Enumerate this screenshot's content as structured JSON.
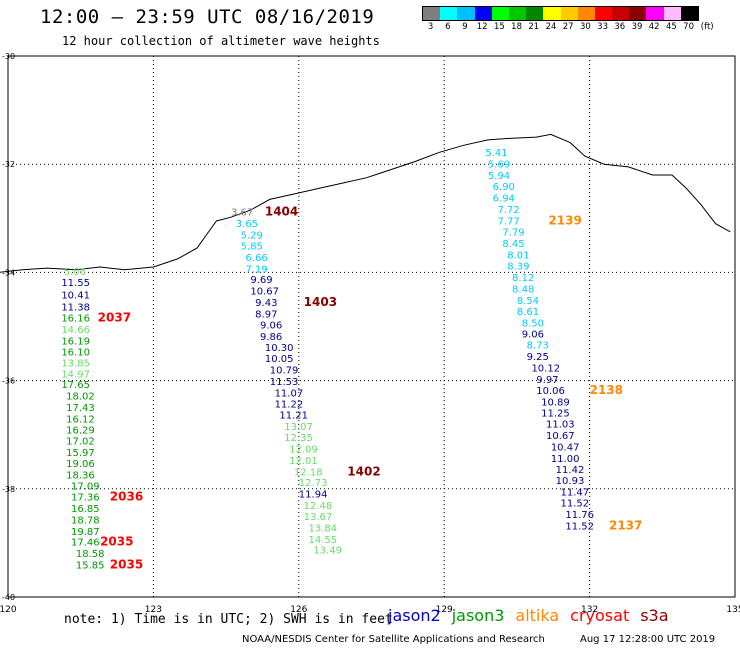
{
  "header": {
    "title": "12:00 – 23:59 UTC 08/16/2019",
    "subtitle": "12 hour collection of altimeter wave heights"
  },
  "colorbar": {
    "unit": "(ft)",
    "labels": [
      "3",
      "6",
      "9",
      "12",
      "15",
      "18",
      "21",
      "24",
      "27",
      "30",
      "33",
      "36",
      "39",
      "42",
      "45",
      "70"
    ],
    "colors": [
      "#7f7f7f",
      "#00ffff",
      "#00bfff",
      "#0000ff",
      "#00ff00",
      "#00c800",
      "#008800",
      "#ffff00",
      "#ffcc00",
      "#ff8800",
      "#ff0000",
      "#c80000",
      "#880000",
      "#ff00ff",
      "#ffbbff",
      "#000000"
    ]
  },
  "map": {
    "lat_labels": [
      "-30",
      "-32",
      "-34",
      "-36",
      "-38",
      "-40"
    ],
    "lon_labels": [
      "120",
      "123",
      "126",
      "129",
      "132",
      "135"
    ]
  },
  "chart_data": {
    "type": "scatter",
    "title": "12:00 – 23:59 UTC 08/16/2019",
    "xlim": [
      120,
      135
    ],
    "ylim": [
      -40,
      -30
    ],
    "track_groups": [
      {
        "name": "track-121",
        "labels": [
          {
            "text": "5.06",
            "lat": -34.05,
            "lon": 121.15,
            "color": "#7fd97f"
          },
          {
            "text": "11.55",
            "lat": -34.25,
            "lon": 121.1,
            "color": "#00008b"
          },
          {
            "text": "10.41",
            "lat": -34.48,
            "lon": 121.1,
            "color": "#00008b"
          },
          {
            "text": "11.38",
            "lat": -34.7,
            "lon": 121.1,
            "color": "#00008b"
          },
          {
            "text": "16.16",
            "lat": -34.91,
            "lon": 121.1,
            "color": "#009900"
          },
          {
            "text": "14.66",
            "lat": -35.12,
            "lon": 121.1,
            "color": "#66dd66"
          },
          {
            "text": "16.19",
            "lat": -35.33,
            "lon": 121.1,
            "color": "#009900"
          },
          {
            "text": "16.10",
            "lat": -35.54,
            "lon": 121.1,
            "color": "#009900"
          },
          {
            "text": "13.85",
            "lat": -35.74,
            "lon": 121.1,
            "color": "#66dd66"
          },
          {
            "text": "14.97",
            "lat": -35.94,
            "lon": 121.1,
            "color": "#66dd66"
          },
          {
            "text": "17.65",
            "lat": -36.14,
            "lon": 121.1,
            "color": "#009900"
          },
          {
            "text": "18.02",
            "lat": -36.35,
            "lon": 121.2,
            "color": "#009900"
          },
          {
            "text": "17.43",
            "lat": -36.56,
            "lon": 121.2,
            "color": "#009900"
          },
          {
            "text": "16.12",
            "lat": -36.77,
            "lon": 121.2,
            "color": "#009900"
          },
          {
            "text": "16.29",
            "lat": -36.98,
            "lon": 121.2,
            "color": "#009900"
          },
          {
            "text": "17.02",
            "lat": -37.18,
            "lon": 121.2,
            "color": "#009900"
          },
          {
            "text": "15.97",
            "lat": -37.39,
            "lon": 121.2,
            "color": "#009900"
          },
          {
            "text": "19.06",
            "lat": -37.6,
            "lon": 121.2,
            "color": "#009900"
          },
          {
            "text": "18.36",
            "lat": -37.81,
            "lon": 121.2,
            "color": "#009900"
          },
          {
            "text": "17.09",
            "lat": -38.01,
            "lon": 121.3,
            "color": "#009900"
          },
          {
            "text": "17.36",
            "lat": -38.22,
            "lon": 121.3,
            "color": "#009900"
          },
          {
            "text": "16.85",
            "lat": -38.43,
            "lon": 121.3,
            "color": "#009900"
          },
          {
            "text": "18.78",
            "lat": -38.64,
            "lon": 121.3,
            "color": "#009900"
          },
          {
            "text": "19.87",
            "lat": -38.85,
            "lon": 121.3,
            "color": "#009900"
          },
          {
            "text": "17.46",
            "lat": -39.05,
            "lon": 121.3,
            "color": "#009900"
          },
          {
            "text": "18.58",
            "lat": -39.26,
            "lon": 121.4,
            "color": "#009900"
          },
          {
            "text": "15.85",
            "lat": -39.47,
            "lon": 121.4,
            "color": "#009900"
          }
        ]
      },
      {
        "name": "track-125",
        "labels": [
          {
            "text": "3.67",
            "lat": -32.95,
            "lon": 124.6,
            "color": "#7f7f7f"
          },
          {
            "text": "3.65",
            "lat": -33.16,
            "lon": 124.7,
            "color": "#00ccff"
          },
          {
            "text": "5.29",
            "lat": -33.37,
            "lon": 124.8,
            "color": "#00ccff"
          },
          {
            "text": "5.85",
            "lat": -33.58,
            "lon": 124.8,
            "color": "#00ccff"
          },
          {
            "text": "6.66",
            "lat": -33.79,
            "lon": 124.9,
            "color": "#00ccff"
          },
          {
            "text": "7.19",
            "lat": -34.0,
            "lon": 124.9,
            "color": "#00ccff"
          },
          {
            "text": "9.69",
            "lat": -34.2,
            "lon": 125.0,
            "color": "#00008b"
          },
          {
            "text": "10.67",
            "lat": -34.41,
            "lon": 125.0,
            "color": "#00008b"
          },
          {
            "text": "9.43",
            "lat": -34.62,
            "lon": 125.1,
            "color": "#00008b"
          },
          {
            "text": "8.97",
            "lat": -34.83,
            "lon": 125.1,
            "color": "#00008b"
          },
          {
            "text": "9.06",
            "lat": -35.04,
            "lon": 125.2,
            "color": "#00008b"
          },
          {
            "text": "9.86",
            "lat": -35.25,
            "lon": 125.2,
            "color": "#00008b"
          },
          {
            "text": "10.30",
            "lat": -35.45,
            "lon": 125.3,
            "color": "#00008b"
          },
          {
            "text": "10.05",
            "lat": -35.66,
            "lon": 125.3,
            "color": "#00008b"
          },
          {
            "text": "10.79",
            "lat": -35.87,
            "lon": 125.4,
            "color": "#00008b"
          },
          {
            "text": "11.53",
            "lat": -36.08,
            "lon": 125.4,
            "color": "#00008b"
          },
          {
            "text": "11.07",
            "lat": -36.29,
            "lon": 125.5,
            "color": "#00008b"
          },
          {
            "text": "11.22",
            "lat": -36.5,
            "lon": 125.5,
            "color": "#00008b"
          },
          {
            "text": "11.21",
            "lat": -36.7,
            "lon": 125.6,
            "color": "#00008b"
          },
          {
            "text": "13.07",
            "lat": -36.91,
            "lon": 125.7,
            "color": "#66dd66"
          },
          {
            "text": "12.35",
            "lat": -37.12,
            "lon": 125.7,
            "color": "#66dd66"
          },
          {
            "text": "12.09",
            "lat": -37.33,
            "lon": 125.8,
            "color": "#66dd66"
          },
          {
            "text": "12.01",
            "lat": -37.54,
            "lon": 125.8,
            "color": "#66dd66"
          },
          {
            "text": "12.18",
            "lat": -37.75,
            "lon": 125.9,
            "color": "#66dd66"
          },
          {
            "text": "12.73",
            "lat": -37.95,
            "lon": 126.0,
            "color": "#66dd66"
          },
          {
            "text": "11.94",
            "lat": -38.16,
            "lon": 126.0,
            "color": "#00008b"
          },
          {
            "text": "12.48",
            "lat": -38.37,
            "lon": 126.1,
            "color": "#66dd66"
          },
          {
            "text": "13.67",
            "lat": -38.58,
            "lon": 126.1,
            "color": "#66dd66"
          },
          {
            "text": "13.84",
            "lat": -38.79,
            "lon": 126.2,
            "color": "#66dd66"
          },
          {
            "text": "14.55",
            "lat": -39.0,
            "lon": 126.2,
            "color": "#66dd66"
          },
          {
            "text": "13.49",
            "lat": -39.2,
            "lon": 126.3,
            "color": "#66dd66"
          }
        ]
      },
      {
        "name": "track-130",
        "labels": [
          {
            "text": "5.41",
            "lat": -31.85,
            "lon": 129.85,
            "color": "#00ccff"
          },
          {
            "text": "5.69",
            "lat": -32.06,
            "lon": 129.9,
            "color": "#00ccff"
          },
          {
            "text": "5.94",
            "lat": -32.27,
            "lon": 129.9,
            "color": "#00ccff"
          },
          {
            "text": "6.90",
            "lat": -32.48,
            "lon": 130.0,
            "color": "#00ccff"
          },
          {
            "text": "6.94",
            "lat": -32.69,
            "lon": 130.0,
            "color": "#00ccff"
          },
          {
            "text": "7.72",
            "lat": -32.9,
            "lon": 130.1,
            "color": "#00ccff"
          },
          {
            "text": "7.77",
            "lat": -33.11,
            "lon": 130.1,
            "color": "#00ccff"
          },
          {
            "text": "7.79",
            "lat": -33.32,
            "lon": 130.2,
            "color": "#00ccff"
          },
          {
            "text": "8.45",
            "lat": -33.53,
            "lon": 130.2,
            "color": "#00ccff"
          },
          {
            "text": "8.01",
            "lat": -33.74,
            "lon": 130.3,
            "color": "#00ccff"
          },
          {
            "text": "8.39",
            "lat": -33.95,
            "lon": 130.3,
            "color": "#00ccff"
          },
          {
            "text": "8.12",
            "lat": -34.16,
            "lon": 130.4,
            "color": "#00ccff"
          },
          {
            "text": "8.48",
            "lat": -34.37,
            "lon": 130.4,
            "color": "#00ccff"
          },
          {
            "text": "8.54",
            "lat": -34.58,
            "lon": 130.5,
            "color": "#00ccff"
          },
          {
            "text": "8.61",
            "lat": -34.79,
            "lon": 130.5,
            "color": "#00ccff"
          },
          {
            "text": "8.50",
            "lat": -35.0,
            "lon": 130.6,
            "color": "#00ccff"
          },
          {
            "text": "9.06",
            "lat": -35.2,
            "lon": 130.6,
            "color": "#00008b"
          },
          {
            "text": "8.73",
            "lat": -35.41,
            "lon": 130.7,
            "color": "#00ccff"
          },
          {
            "text": "9.25",
            "lat": -35.62,
            "lon": 130.7,
            "color": "#00008b"
          },
          {
            "text": "10.12",
            "lat": -35.83,
            "lon": 130.8,
            "color": "#00008b"
          },
          {
            "text": "9.97",
            "lat": -36.04,
            "lon": 130.9,
            "color": "#00008b"
          },
          {
            "text": "10.06",
            "lat": -36.25,
            "lon": 130.9,
            "color": "#00008b"
          },
          {
            "text": "10.89",
            "lat": -36.46,
            "lon": 131.0,
            "color": "#00008b"
          },
          {
            "text": "11.25",
            "lat": -36.66,
            "lon": 131.0,
            "color": "#00008b"
          },
          {
            "text": "11.03",
            "lat": -36.87,
            "lon": 131.1,
            "color": "#00008b"
          },
          {
            "text": "10.67",
            "lat": -37.08,
            "lon": 131.1,
            "color": "#00008b"
          },
          {
            "text": "10.47",
            "lat": -37.29,
            "lon": 131.2,
            "color": "#00008b"
          },
          {
            "text": "11.00",
            "lat": -37.5,
            "lon": 131.2,
            "color": "#00008b"
          },
          {
            "text": "11.42",
            "lat": -37.71,
            "lon": 131.3,
            "color": "#00008b"
          },
          {
            "text": "10.93",
            "lat": -37.91,
            "lon": 131.3,
            "color": "#00008b"
          },
          {
            "text": "11.47",
            "lat": -38.12,
            "lon": 131.4,
            "color": "#00008b"
          },
          {
            "text": "11.52",
            "lat": -38.33,
            "lon": 131.4,
            "color": "#00008b"
          },
          {
            "text": "11.76",
            "lat": -38.54,
            "lon": 131.5,
            "color": "#00008b"
          },
          {
            "text": "11.52",
            "lat": -38.75,
            "lon": 131.5,
            "color": "#00008b"
          }
        ]
      }
    ],
    "pass_times": [
      {
        "text": "1404",
        "lat": -32.95,
        "lon": 125.3,
        "color": "#880000"
      },
      {
        "text": "1403",
        "lat": -34.62,
        "lon": 126.1,
        "color": "#880000"
      },
      {
        "text": "1402",
        "lat": -37.75,
        "lon": 127.0,
        "color": "#880000"
      },
      {
        "text": "2037",
        "lat": -34.91,
        "lon": 121.85,
        "color": "#ff0000"
      },
      {
        "text": "2036",
        "lat": -38.22,
        "lon": 122.1,
        "color": "#ff0000"
      },
      {
        "text": "2035",
        "lat": -39.05,
        "lon": 121.9,
        "color": "#ff0000"
      },
      {
        "text": "2035",
        "lat": -39.47,
        "lon": 122.1,
        "color": "#ff0000"
      },
      {
        "text": "2139",
        "lat": -33.11,
        "lon": 131.15,
        "color": "#ff8800"
      },
      {
        "text": "2138",
        "lat": -36.25,
        "lon": 132.0,
        "color": "#ff8800"
      },
      {
        "text": "2137",
        "lat": -38.75,
        "lon": 132.4,
        "color": "#ff8800"
      }
    ]
  },
  "footer": {
    "note": "note: 1) Time is in UTC; 2) SWH is in feet",
    "legend": [
      {
        "label": "jason2",
        "color": "#0000cc"
      },
      {
        "label": "jason3",
        "color": "#009900"
      },
      {
        "label": "altika",
        "color": "#ff8800"
      },
      {
        "label": "cryosat",
        "color": "#ff0000"
      },
      {
        "label": "s3a",
        "color": "#880000"
      }
    ],
    "credit": "NOAA/NESDIS Center for Satellite Applications and Research",
    "timestamp": "Aug 17 12:28:00 UTC 2019"
  }
}
